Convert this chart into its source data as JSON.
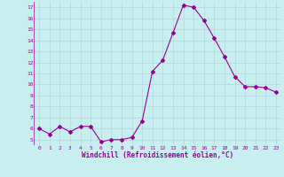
{
  "x": [
    0,
    1,
    2,
    3,
    4,
    5,
    6,
    7,
    8,
    9,
    10,
    11,
    12,
    13,
    14,
    15,
    16,
    17,
    18,
    19,
    20,
    21,
    22,
    23
  ],
  "y": [
    6.0,
    5.5,
    6.2,
    5.7,
    6.2,
    6.2,
    4.8,
    5.0,
    5.0,
    5.2,
    6.7,
    11.2,
    12.2,
    14.7,
    17.2,
    17.0,
    15.8,
    14.2,
    12.5,
    10.7,
    9.8,
    9.8,
    9.7,
    9.3
  ],
  "line_color": "#990099",
  "marker": "D",
  "marker_size": 2.0,
  "bg_color": "#c8eef0",
  "grid_color": "#b0d8dc",
  "xlabel": "Windchill (Refroidissement éolien,°C)",
  "xlabel_color": "#990099",
  "tick_color": "#990099",
  "ylim": [
    4.5,
    17.5
  ],
  "xlim": [
    -0.5,
    23.5
  ],
  "yticks": [
    5,
    6,
    7,
    8,
    9,
    10,
    11,
    12,
    13,
    14,
    15,
    16,
    17
  ],
  "xticks": [
    0,
    1,
    2,
    3,
    4,
    5,
    6,
    7,
    8,
    9,
    10,
    11,
    12,
    13,
    14,
    15,
    16,
    17,
    18,
    19,
    20,
    21,
    22,
    23
  ],
  "line_style": "-",
  "line_width": 0.8
}
